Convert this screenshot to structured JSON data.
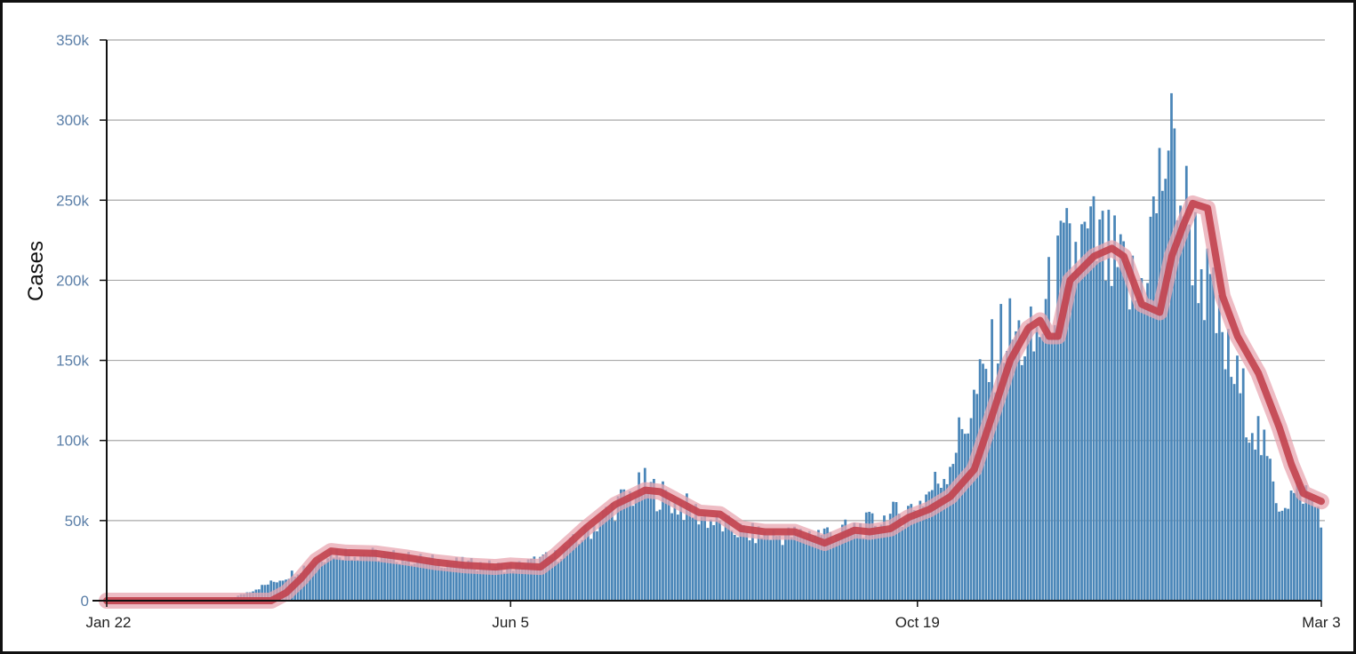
{
  "chart_data": {
    "type": "bar",
    "ylabel": "Cases",
    "xlabel": "",
    "title": "",
    "y_ticks": [
      "0",
      "50k",
      "100k",
      "150k",
      "200k",
      "250k",
      "300k",
      "350k"
    ],
    "y_tick_values": [
      0,
      50000,
      100000,
      150000,
      200000,
      250000,
      300000,
      350000
    ],
    "ylim": [
      0,
      350000
    ],
    "x_ticks": [
      "Jan 22",
      "Jun 5",
      "Oct 19",
      "Mar 3"
    ],
    "x_tick_day_index": [
      0,
      135,
      271,
      406
    ],
    "x_range": [
      "Jan 22",
      "Mar 3"
    ],
    "num_days": 407,
    "grid": true,
    "legend": "none",
    "colors": {
      "bars": "#4a86b8",
      "bar_edge": "#2f6a9a",
      "moving_average": "#c1414e",
      "moving_average_glow": "#e8a6b0",
      "grid": "#a8a8a8",
      "axis": "#111111"
    },
    "series": [
      {
        "kind": "daily_bars",
        "x_day_index": [
          0,
          40,
          60,
          75,
          90,
          110,
          135,
          150,
          160,
          170,
          180,
          192,
          205,
          215,
          225,
          240,
          250,
          265,
          271,
          280,
          290,
          300,
          310,
          320,
          330,
          345,
          355,
          365,
          375,
          385,
          392,
          400,
          406
        ],
        "values": [
          0,
          0,
          15000,
          31000,
          29000,
          25000,
          21000,
          28000,
          42000,
          60000,
          72000,
          60000,
          48000,
          42000,
          41000,
          43000,
          45000,
          55000,
          60000,
          80000,
          125000,
          170000,
          160000,
          215000,
          225000,
          190000,
          290000,
          215000,
          150000,
          105000,
          62000,
          70000,
          55000
        ]
      },
      {
        "kind": "moving_average_7day",
        "x_day_index": [
          0,
          55,
          60,
          65,
          70,
          75,
          80,
          90,
          100,
          110,
          120,
          130,
          135,
          145,
          150,
          160,
          170,
          180,
          185,
          190,
          198,
          205,
          212,
          220,
          230,
          240,
          245,
          250,
          255,
          262,
          268,
          275,
          282,
          290,
          295,
          302,
          308,
          312,
          315,
          318,
          322,
          330,
          336,
          340,
          346,
          352,
          356,
          360,
          363,
          368,
          373,
          378,
          385,
          392,
          396,
          400,
          406
        ],
        "values": [
          0,
          0,
          5000,
          14000,
          25000,
          31000,
          30000,
          29500,
          27000,
          24000,
          22000,
          21000,
          22000,
          21000,
          28000,
          45000,
          60000,
          69000,
          68000,
          63000,
          55000,
          54000,
          45000,
          43000,
          43000,
          36000,
          40000,
          44000,
          43000,
          45000,
          52000,
          57000,
          65000,
          82000,
          110000,
          150000,
          170000,
          175000,
          165000,
          165000,
          200000,
          215000,
          220000,
          215000,
          185000,
          180000,
          215000,
          235000,
          248000,
          245000,
          190000,
          165000,
          142000,
          108000,
          85000,
          67000,
          62000
        ]
      }
    ]
  }
}
